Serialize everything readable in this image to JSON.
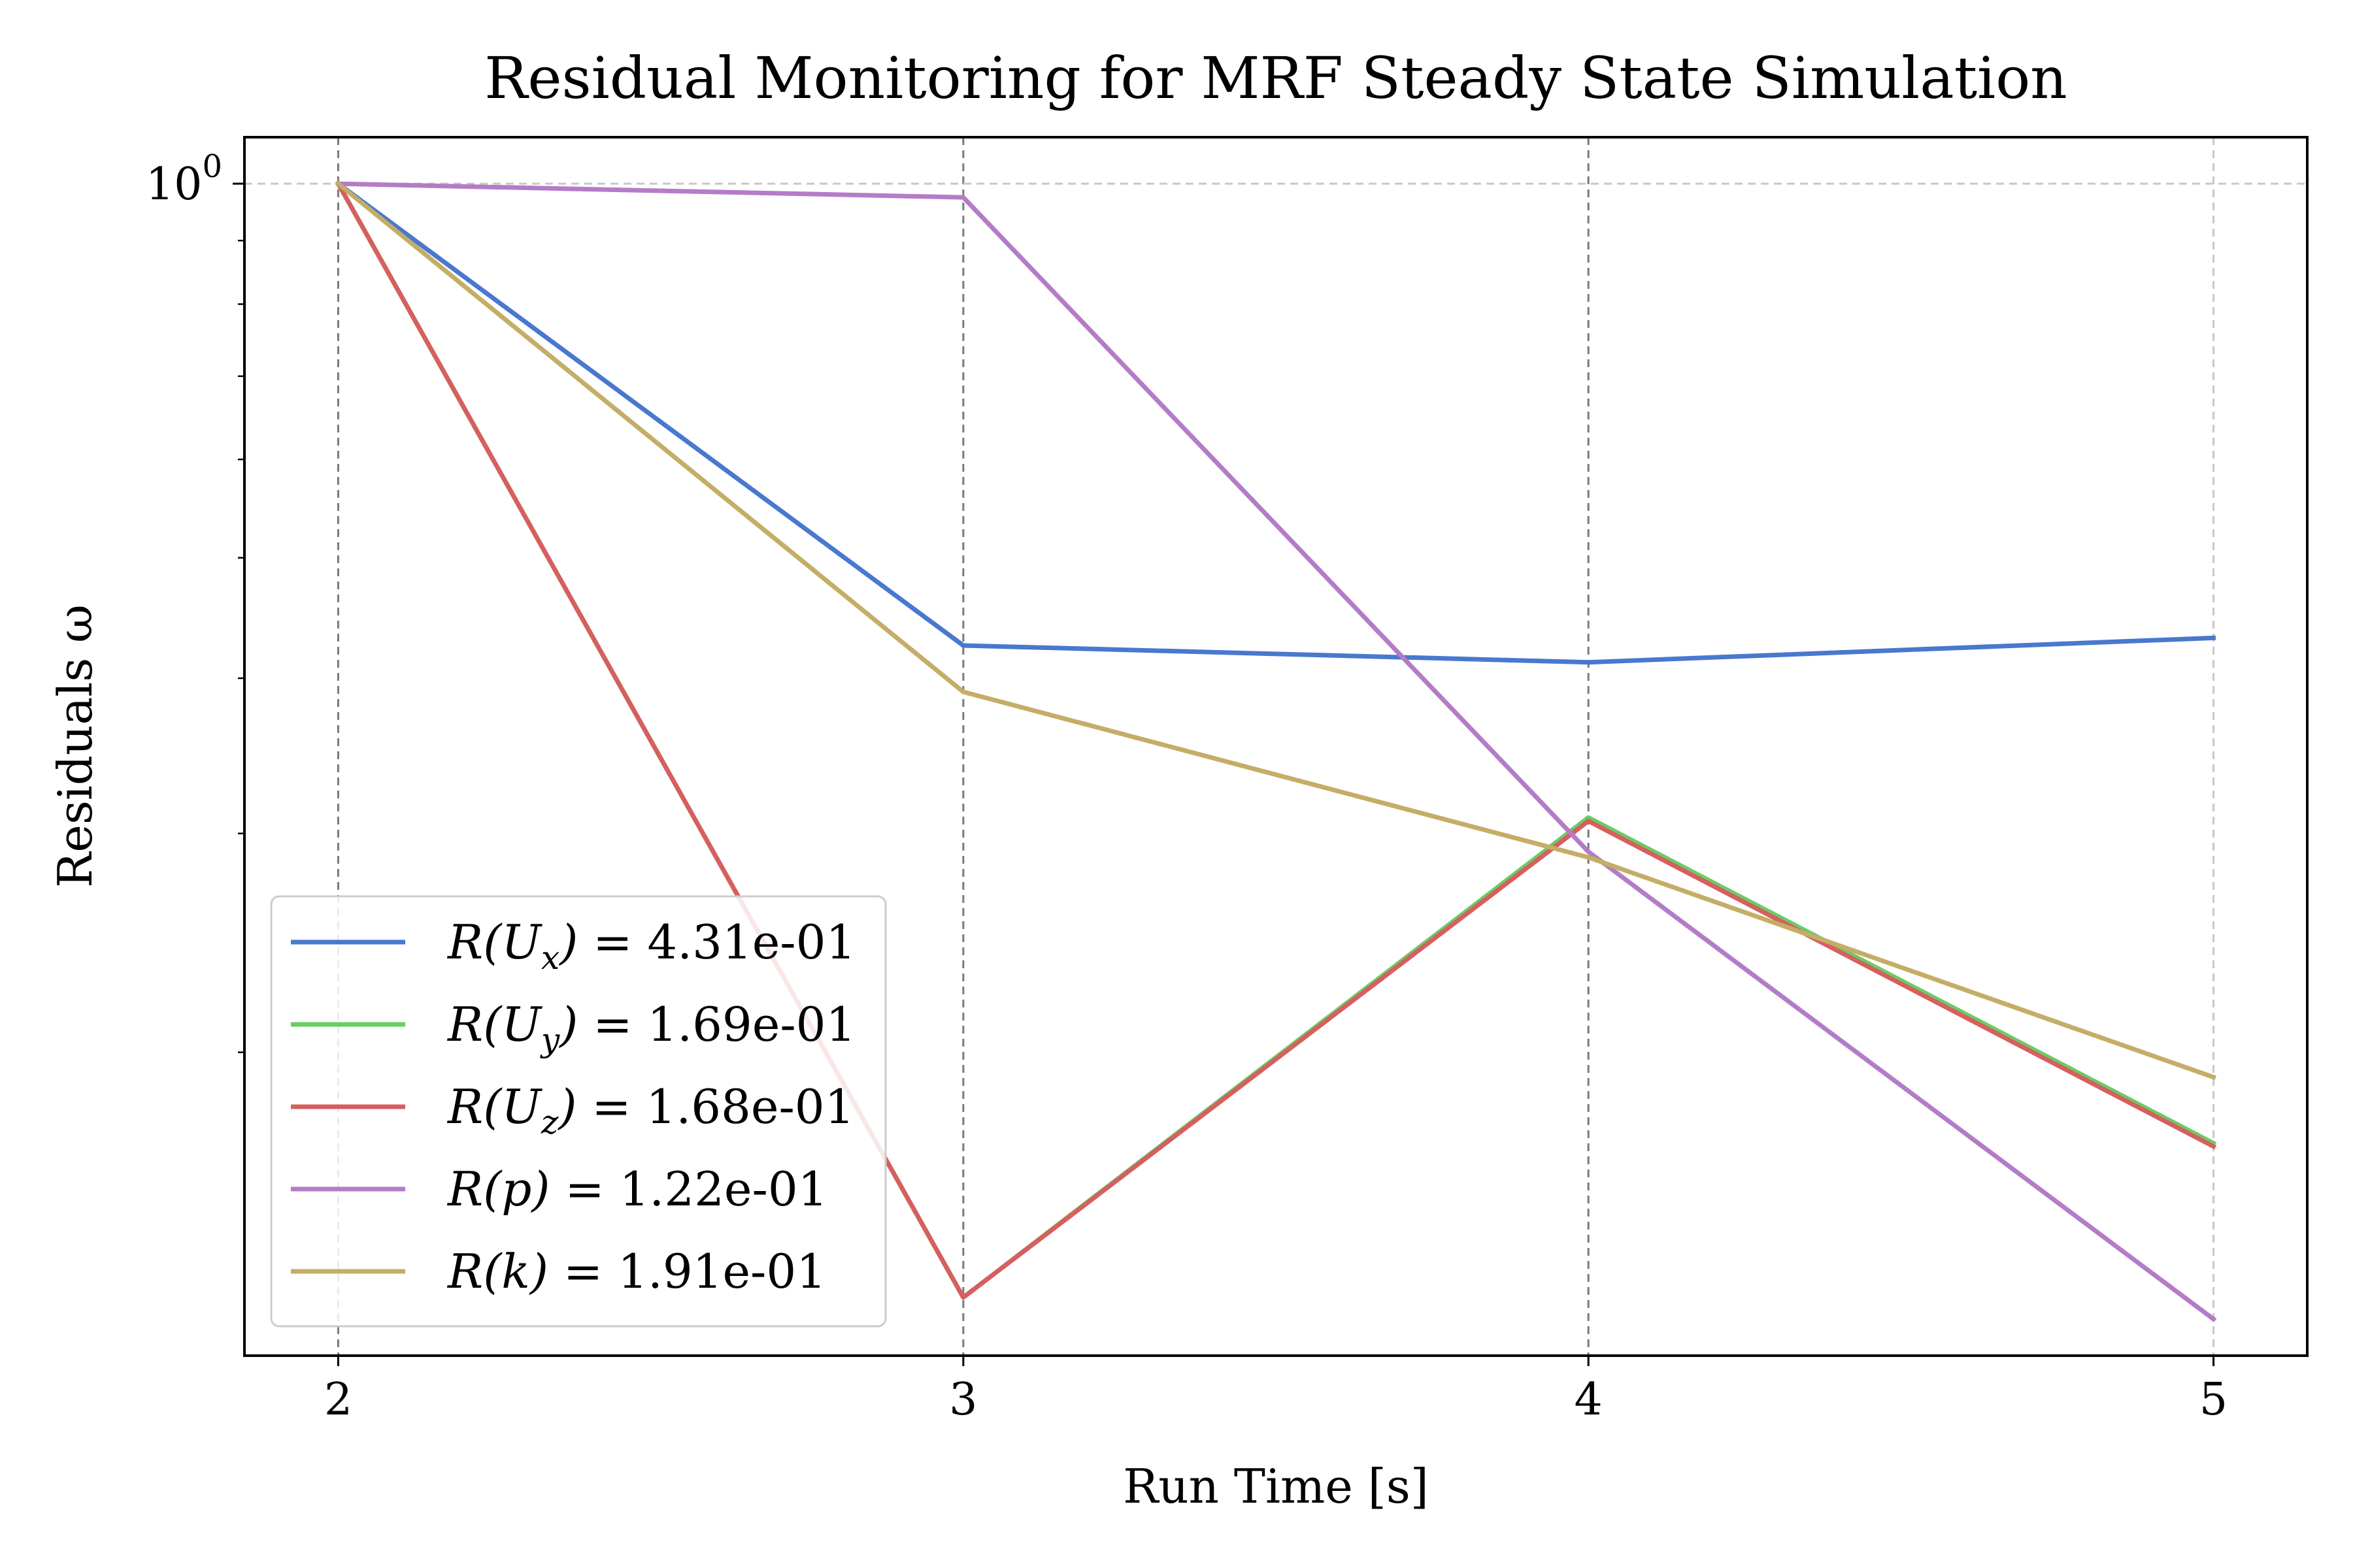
{
  "chart_data": {
    "type": "line",
    "title": "Residual Monitoring for MRF Steady State Simulation",
    "xlabel": "Run Time [s]",
    "ylabel": "Residuals ω",
    "x": [
      2,
      3,
      4,
      5
    ],
    "x_ticks": [
      "2",
      "3",
      "4",
      "5"
    ],
    "xlim": [
      1.85,
      5.15
    ],
    "y_scale": "log",
    "ylim": [
      0.114,
      1.09
    ],
    "y_major_tick": {
      "value": 1.0,
      "base": "10",
      "exponent": "0"
    },
    "y_minor_ticks": [
      0.2,
      0.3,
      0.4,
      0.5,
      0.6,
      0.7,
      0.8,
      0.9
    ],
    "grid": {
      "x": true,
      "y": true,
      "style": "dashed"
    },
    "legend_position": "lower-left",
    "series": [
      {
        "name_main": "R(U",
        "name_sub": "x",
        "name_close": ")",
        "name_value": " = 4.31e-01",
        "color": "#4878cf",
        "values": [
          1.0,
          0.425,
          0.412,
          0.431
        ]
      },
      {
        "name_main": "R(U",
        "name_sub": "y",
        "name_close": ")",
        "name_value": " = 1.69e-01",
        "color": "#6acc65",
        "values": [
          1.0,
          0.127,
          0.309,
          0.169
        ]
      },
      {
        "name_main": "R(U",
        "name_sub": "z",
        "name_close": ")",
        "name_value": " = 1.68e-01",
        "color": "#d65f5f",
        "values": [
          1.0,
          0.127,
          0.307,
          0.168
        ]
      },
      {
        "name_main": "R(p)",
        "name_sub": "",
        "name_close": "",
        "name_value": " = 1.22e-01",
        "color": "#b47cc7",
        "values": [
          1.0,
          0.975,
          0.29,
          0.122
        ]
      },
      {
        "name_main": "R(k)",
        "name_sub": "",
        "name_close": "",
        "name_value": " = 1.91e-01",
        "color": "#c4ad66",
        "values": [
          1.0,
          0.39,
          0.287,
          0.191
        ]
      }
    ]
  }
}
